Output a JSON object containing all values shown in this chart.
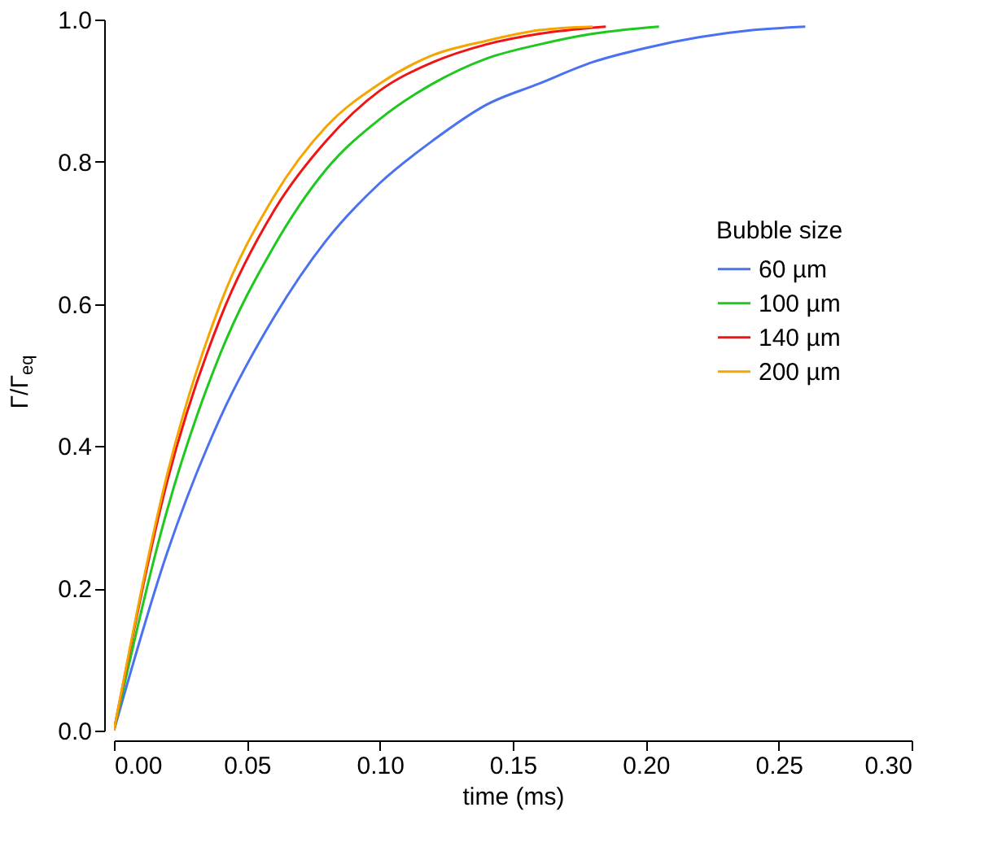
{
  "chart_data": {
    "type": "line",
    "xlabel": "time (ms)",
    "ylabel": "Γ/Γ$_{eq}$",
    "legend_title": "Bubble size",
    "legend": "right",
    "grid": false,
    "marker": "none",
    "line_style": "solid",
    "xlim": [
      0,
      0.3
    ],
    "xticks": [
      {
        "value": 0,
        "label": "0.00"
      },
      0.05,
      {
        "value": 0.1,
        "label": "0.10"
      },
      0.15,
      {
        "value": 0.2,
        "label": "0.20"
      },
      0.25,
      {
        "value": 0.3,
        "label": "0.30"
      }
    ],
    "ylim": [
      0,
      1
    ],
    "yticks": [
      {
        "value": 0,
        "label": "0.0"
      },
      0.2,
      0.4,
      0.6,
      0.8,
      {
        "value": 1,
        "label": "1.0"
      }
    ],
    "series": [
      {
        "name": "60 µm",
        "color": "#4a72f0",
        "x": [
          0,
          0.02,
          0.04,
          0.06,
          0.08,
          0.1,
          0.12,
          0.14,
          0.16,
          0.18,
          0.2,
          0.22,
          0.24,
          0.26
        ],
        "values": [
          0,
          0.25,
          0.44,
          0.58,
          0.69,
          0.77,
          0.83,
          0.88,
          0.91,
          0.94,
          0.96,
          0.975,
          0.985,
          0.99
        ]
      },
      {
        "name": "100 µm",
        "color": "#1ec81e",
        "x": [
          0,
          0.02,
          0.04,
          0.06,
          0.08,
          0.1,
          0.12,
          0.14,
          0.16,
          0.18,
          0.205
        ],
        "values": [
          0,
          0.31,
          0.53,
          0.68,
          0.79,
          0.86,
          0.91,
          0.945,
          0.965,
          0.98,
          0.99
        ]
      },
      {
        "name": "140 µm",
        "color": "#f01414",
        "x": [
          0,
          0.02,
          0.04,
          0.06,
          0.08,
          0.1,
          0.12,
          0.14,
          0.16,
          0.185
        ],
        "values": [
          0,
          0.35,
          0.58,
          0.73,
          0.83,
          0.9,
          0.94,
          0.965,
          0.98,
          0.99
        ]
      },
      {
        "name": "200 µm",
        "color": "#f5a500",
        "x": [
          0,
          0.02,
          0.04,
          0.06,
          0.08,
          0.1,
          0.12,
          0.14,
          0.16,
          0.18
        ],
        "values": [
          0,
          0.36,
          0.6,
          0.75,
          0.85,
          0.91,
          0.95,
          0.97,
          0.985,
          0.99
        ]
      }
    ]
  }
}
